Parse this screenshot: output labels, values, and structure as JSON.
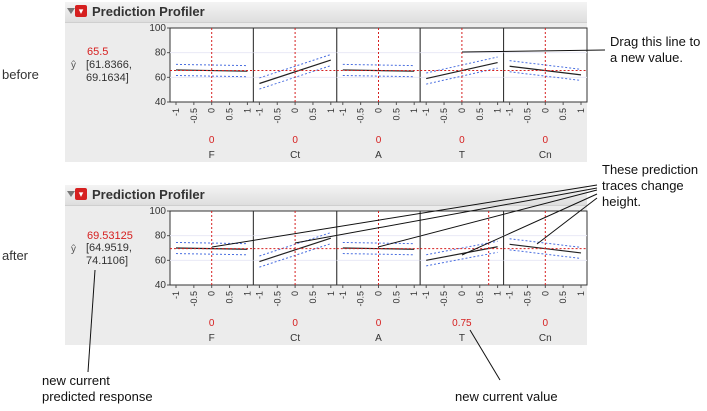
{
  "before": {
    "side_label": "before",
    "title": "Prediction Profiler",
    "response_value": "65.5",
    "ci_line1": "[61.8366,",
    "ci_line2": "69.1634]",
    "y_ticks": [
      "100",
      "80",
      "60",
      "40"
    ],
    "x_ticks": [
      "-1",
      "-0.5",
      "0",
      "0.5",
      "1"
    ],
    "factors": [
      {
        "name": "F",
        "value": "0"
      },
      {
        "name": "Ct",
        "value": "0"
      },
      {
        "name": "A",
        "value": "0"
      },
      {
        "name": "T",
        "value": "0"
      },
      {
        "name": "Cn",
        "value": "0"
      }
    ]
  },
  "after": {
    "side_label": "after",
    "title": "Prediction Profiler",
    "response_value": "69.53125",
    "ci_line1": "[64.9519,",
    "ci_line2": "74.1106]",
    "y_ticks": [
      "100",
      "80",
      "60",
      "40"
    ],
    "x_ticks": [
      "-1",
      "-0.5",
      "0",
      "0.5",
      "1"
    ],
    "factors": [
      {
        "name": "F",
        "value": "0"
      },
      {
        "name": "Ct",
        "value": "0"
      },
      {
        "name": "A",
        "value": "0"
      },
      {
        "name": "T",
        "value": "0.75"
      },
      {
        "name": "Cn",
        "value": "0"
      }
    ]
  },
  "annotations": {
    "drag_line1": "Drag this line to",
    "drag_line2": "a new value.",
    "traces_line1": "These prediction",
    "traces_line2": "traces change",
    "traces_line3": "height.",
    "predicted_line1": "new current",
    "predicted_line2": "predicted response",
    "current_value": "new current value"
  },
  "colors": {
    "accent_red": "#d62020",
    "ci_blue": "#4a6fe0"
  },
  "icons": [
    "disclosure-triangle-icon",
    "red-menu-icon",
    "y-hat-icon"
  ]
}
